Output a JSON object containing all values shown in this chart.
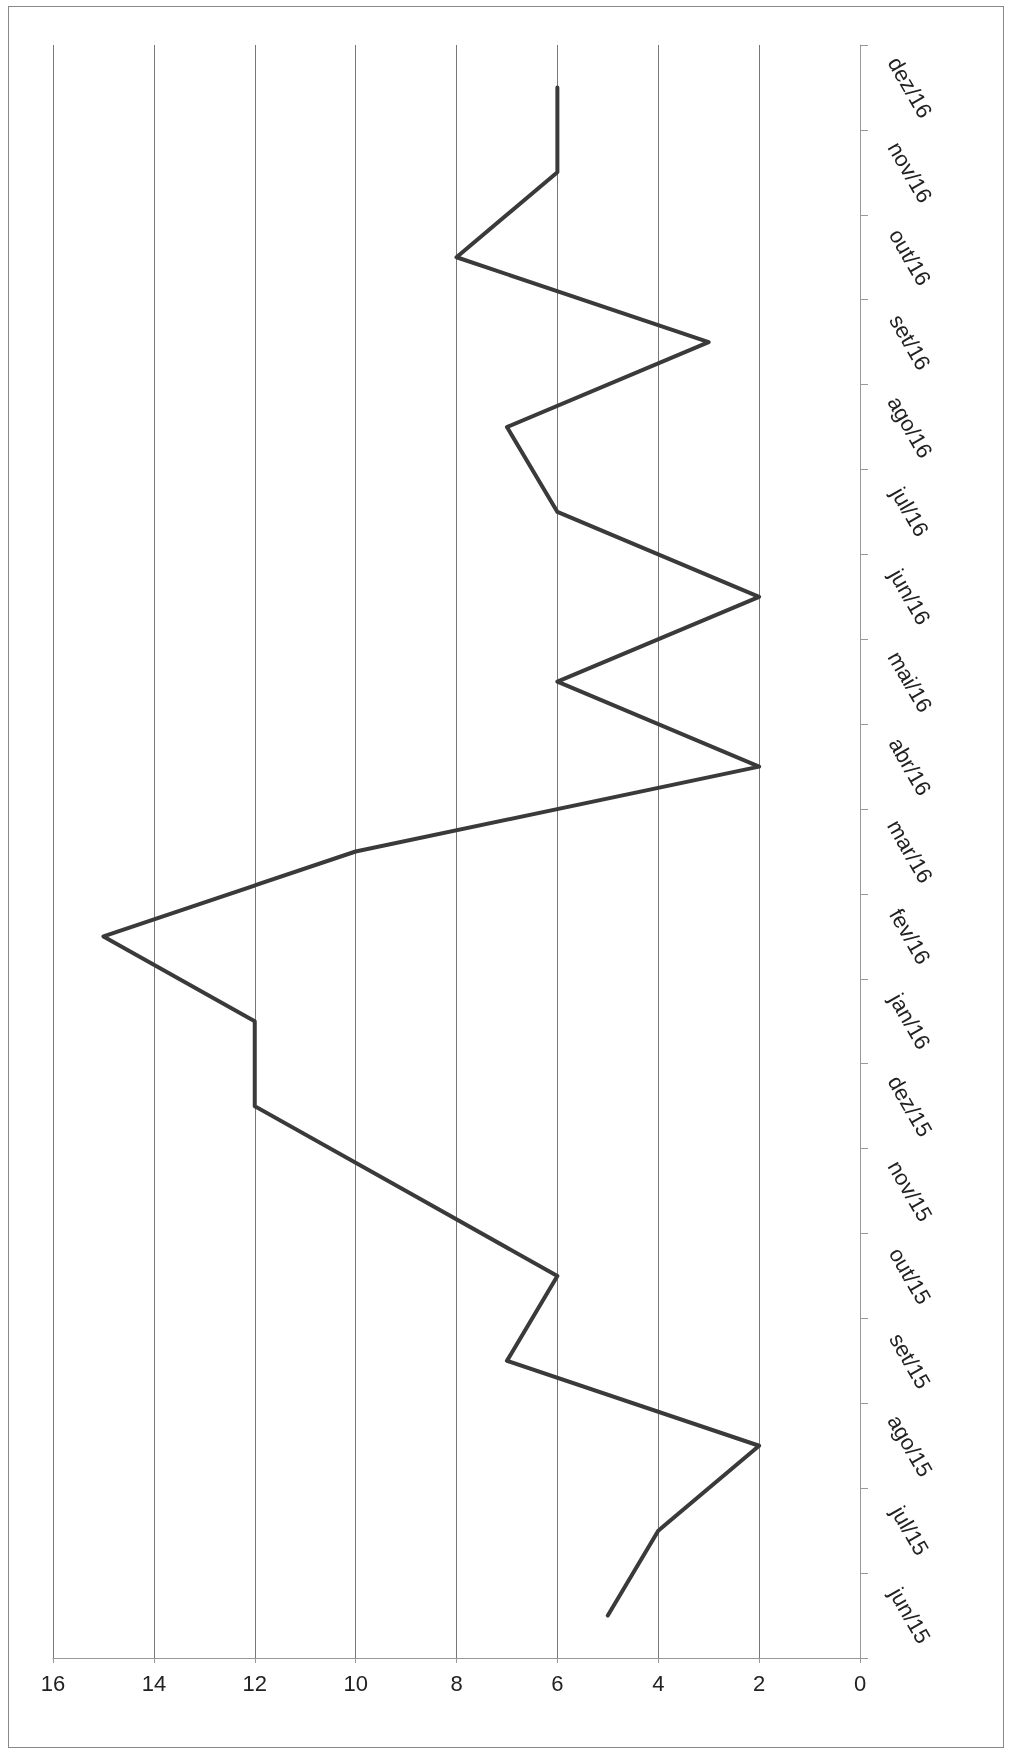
{
  "chart_data": {
    "type": "line",
    "categories": [
      "dez/16",
      "nov/16",
      "out/16",
      "set/16",
      "ago/16",
      "jul/16",
      "jun/16",
      "mai/16",
      "abr/16",
      "mar/16",
      "fev/16",
      "jan/16",
      "dez/15",
      "nov/15",
      "out/15",
      "set/15",
      "ago/15",
      "jul/15",
      "jun/15"
    ],
    "series": [
      {
        "color": "#3a3a3a",
        "values": [
          6,
          6,
          8,
          3,
          7,
          6,
          2,
          6,
          2,
          10,
          15,
          12,
          12,
          9,
          6,
          7,
          2,
          4,
          5
        ]
      }
    ],
    "orientation": "horizontal",
    "xlim": [
      16,
      0
    ],
    "xticks": [
      16,
      14,
      12,
      10,
      8,
      6,
      4,
      2,
      0
    ],
    "grid": "x",
    "marker": "none",
    "line_style": "solid"
  }
}
